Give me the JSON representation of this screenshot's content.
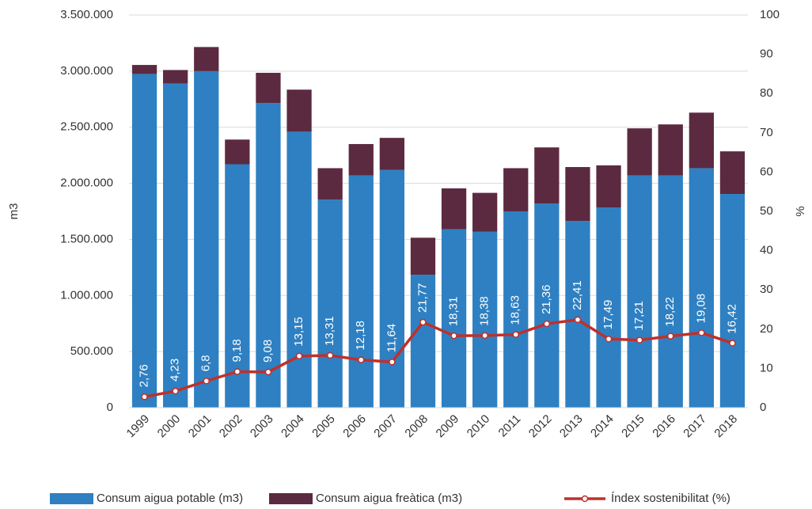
{
  "chart_data": {
    "type": "stacked_bar_line",
    "y_label": "m3",
    "y2_label": "%",
    "categories": [
      "1999",
      "2000",
      "2001",
      "2002",
      "2003",
      "2004",
      "2005",
      "2006",
      "2007",
      "2008",
      "2009",
      "2010",
      "2011",
      "2012",
      "2013",
      "2014",
      "2015",
      "2016",
      "2017",
      "2018"
    ],
    "series": [
      {
        "name": "Consum aigua potable (m3)",
        "color": "#2e80c2",
        "axis": "y",
        "values": [
          2975000,
          2890000,
          3000000,
          2170000,
          2715000,
          2460000,
          1855000,
          2070000,
          2120000,
          1185000,
          1590000,
          1570000,
          1750000,
          1820000,
          1665000,
          1785000,
          2070000,
          2070000,
          2135000,
          1905000
        ]
      },
      {
        "name": "Consum aigua freàtica (m3)",
        "color": "#5c2a40",
        "axis": "y",
        "values": [
          80000,
          120000,
          215000,
          220000,
          270000,
          375000,
          280000,
          280000,
          285000,
          330000,
          365000,
          345000,
          385000,
          500000,
          480000,
          375000,
          420000,
          455000,
          495000,
          380000
        ]
      },
      {
        "name": "Índex sostenibilitat (%)",
        "color": "#c0302a",
        "axis": "y2",
        "values": [
          2.76,
          4.23,
          6.8,
          9.18,
          9.08,
          13.15,
          13.31,
          12.18,
          11.64,
          21.77,
          18.31,
          18.38,
          18.63,
          21.36,
          22.41,
          17.49,
          17.21,
          18.22,
          19.08,
          16.42
        ],
        "value_labels": [
          "2,76",
          "4,23",
          "6,8",
          "9,18",
          "9,08",
          "13,15",
          "13,31",
          "12,18",
          "11,64",
          "21,77",
          "18,31",
          "18,38",
          "18,63",
          "21,36",
          "22,41",
          "17,49",
          "17,21",
          "18,22",
          "19,08",
          "16,42"
        ]
      }
    ],
    "ylim": [
      0,
      3500000
    ],
    "yticks": [
      0,
      {
        "value": 500000,
        "label": "500.000"
      },
      {
        "value": 1000000,
        "label": "1.000.000"
      },
      {
        "value": 1500000,
        "label": "1.500.000"
      },
      {
        "value": 2000000,
        "label": "2.000.000"
      },
      {
        "value": 2500000,
        "label": "2.500.000"
      },
      {
        "value": 3000000,
        "label": "3.000.000"
      },
      {
        "value": 3500000,
        "label": "3.500.000"
      }
    ],
    "y2lim": [
      0,
      100
    ],
    "y2ticks": [
      0,
      10,
      20,
      30,
      40,
      50,
      60,
      70,
      80,
      90,
      100
    ],
    "grid": true,
    "legend": "bottom"
  }
}
